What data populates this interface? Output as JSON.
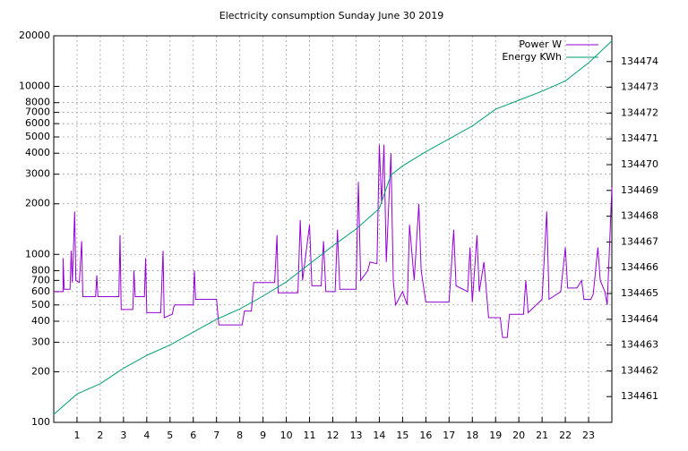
{
  "chart_data": {
    "type": "line",
    "title": "Electricity consumption Sunday June 30 2019",
    "xlim": [
      0,
      24
    ],
    "xticks": [
      1,
      2,
      3,
      4,
      5,
      6,
      7,
      8,
      9,
      10,
      11,
      12,
      13,
      14,
      15,
      16,
      17,
      18,
      19,
      20,
      21,
      22,
      23
    ],
    "ylim": [
      100,
      20000
    ],
    "log_y": true,
    "yticks": [
      100,
      200,
      300,
      400,
      500,
      600,
      700,
      800,
      1000,
      2000,
      3000,
      4000,
      5000,
      6000,
      7000,
      8000,
      10000,
      20000
    ],
    "y2lim": [
      134460,
      134475
    ],
    "y2ticks": [
      134461,
      134462,
      134463,
      134464,
      134465,
      134466,
      134467,
      134468,
      134469,
      134470,
      134471,
      134472,
      134473,
      134474
    ],
    "grid": true,
    "legend": "top right",
    "series": [
      {
        "name": "Power W",
        "color": "#9400d3",
        "x": [
          0,
          0.4,
          0.4,
          0.45,
          0.7,
          0.75,
          0.8,
          0.9,
          0.95,
          1.1,
          1.2,
          1.25,
          1.8,
          1.85,
          1.9,
          2.8,
          2.85,
          2.9,
          3.4,
          3.45,
          3.5,
          3.9,
          3.95,
          4.0,
          4.6,
          4.7,
          4.75,
          5.1,
          5.15,
          5.2,
          6.0,
          6.05,
          6.1,
          7.0,
          7.1,
          8.1,
          8.2,
          8.5,
          8.6,
          9.5,
          9.6,
          9.65,
          10.5,
          10.6,
          10.7,
          11.0,
          11.1,
          11.5,
          11.6,
          11.7,
          12.1,
          12.2,
          12.3,
          13.0,
          13.1,
          13.2,
          13.5,
          13.6,
          13.9,
          14.0,
          14.1,
          14.2,
          14.3,
          14.5,
          14.6,
          14.7,
          15.0,
          15.2,
          15.3,
          15.5,
          15.7,
          15.8,
          16.0,
          16.5,
          17.0,
          17.2,
          17.3,
          17.8,
          17.9,
          18.0,
          18.2,
          18.3,
          18.5,
          18.7,
          19.2,
          19.3,
          19.5,
          19.6,
          20.2,
          20.3,
          20.4,
          21.0,
          21.2,
          21.3,
          21.8,
          22.0,
          22.1,
          22.5,
          22.7,
          22.8,
          23.1,
          23.2,
          23.4,
          23.5,
          23.7,
          23.8,
          24
        ],
        "values": [
          600,
          600,
          950,
          620,
          620,
          1050,
          680,
          1800,
          700,
          680,
          1200,
          560,
          560,
          750,
          560,
          560,
          1300,
          470,
          470,
          800,
          560,
          560,
          950,
          450,
          450,
          1050,
          420,
          440,
          480,
          500,
          500,
          800,
          540,
          540,
          380,
          380,
          460,
          460,
          680,
          680,
          1300,
          590,
          590,
          1600,
          700,
          1500,
          650,
          650,
          1200,
          600,
          600,
          1400,
          620,
          620,
          2700,
          700,
          800,
          900,
          880,
          4500,
          2000,
          4500,
          900,
          4000,
          700,
          500,
          600,
          500,
          1500,
          700,
          2000,
          800,
          520,
          520,
          520,
          1400,
          650,
          600,
          1100,
          520,
          1300,
          600,
          900,
          420,
          420,
          320,
          320,
          440,
          440,
          700,
          450,
          540,
          1800,
          540,
          600,
          1100,
          630,
          630,
          700,
          540,
          540,
          580,
          1100,
          700,
          600,
          500,
          2500
        ]
      },
      {
        "name": "Energy KWh",
        "color": "#009e73",
        "axis": "y2",
        "x": [
          0,
          1,
          2,
          3,
          4,
          5,
          6,
          7,
          8,
          9,
          10,
          11,
          12,
          13,
          14,
          14.5,
          15,
          16,
          17,
          18,
          19,
          20,
          21,
          22,
          23,
          24
        ],
        "values": [
          134460.31,
          134461.1,
          134461.5,
          134462.1,
          134462.6,
          134463.0,
          134463.5,
          134464.0,
          134464.4,
          134464.9,
          134465.45,
          134466.15,
          134466.85,
          134467.5,
          134468.3,
          134469.6,
          134469.95,
          134470.5,
          134471.0,
          134471.5,
          134472.15,
          134472.5,
          134472.85,
          134473.25,
          134473.95,
          134474.8
        ]
      }
    ]
  }
}
